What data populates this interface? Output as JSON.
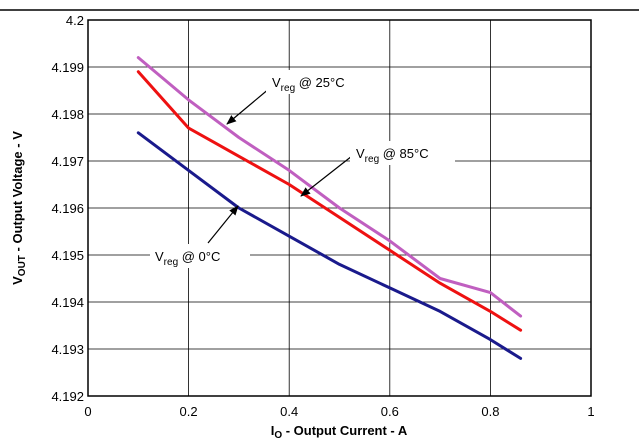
{
  "chart_data": {
    "type": "line",
    "title": "",
    "xlabel": {
      "main": "I",
      "sub": "O",
      "rest": " - Output Current - A"
    },
    "ylabel": {
      "main": "V",
      "sub": "OUT",
      "rest": " - Output Voltage - V"
    },
    "xlim": [
      0,
      1
    ],
    "ylim": [
      4.192,
      4.2
    ],
    "x_ticks": [
      0,
      0.2,
      0.4,
      0.6,
      0.8,
      1
    ],
    "x_tick_labels": [
      "0",
      "0.2",
      "0.4",
      "0.6",
      "0.8",
      "1"
    ],
    "y_ticks": [
      4.192,
      4.193,
      4.194,
      4.195,
      4.196,
      4.197,
      4.198,
      4.199,
      4.2
    ],
    "y_tick_labels": [
      "4.192",
      "4.193",
      "4.194",
      "4.195",
      "4.196",
      "4.197",
      "4.198",
      "4.199",
      "4.2"
    ],
    "grid": true,
    "series": [
      {
        "color": "#c05fc0",
        "x": [
          0.1,
          0.2,
          0.3,
          0.4,
          0.5,
          0.6,
          0.7,
          0.8,
          0.86
        ],
        "y": [
          4.1992,
          4.1983,
          4.1975,
          4.1968,
          4.196,
          4.1953,
          4.1945,
          4.1942,
          4.1937
        ]
      },
      {
        "color": "#ee1111",
        "x": [
          0.1,
          0.15,
          0.2,
          0.25,
          0.3,
          0.4,
          0.5,
          0.6,
          0.7,
          0.8,
          0.86
        ],
        "y": [
          4.1989,
          4.1983,
          4.1977,
          4.1974,
          4.1971,
          4.1965,
          4.1958,
          4.1951,
          4.1944,
          4.1938,
          4.1934
        ]
      },
      {
        "color": "#1a1a8c",
        "x": [
          0.1,
          0.2,
          0.3,
          0.4,
          0.5,
          0.6,
          0.7,
          0.8,
          0.86
        ],
        "y": [
          4.1976,
          4.1968,
          4.196,
          4.1954,
          4.1948,
          4.1943,
          4.1938,
          4.1932,
          4.1928
        ]
      }
    ],
    "annotations": [
      {
        "main": "V",
        "sub": "reg",
        "rest": " @ 25°C"
      },
      {
        "main": "V",
        "sub": "reg",
        "rest": " @ 85°C"
      },
      {
        "main": "V",
        "sub": "reg",
        "rest": " @ 0°C"
      }
    ]
  }
}
